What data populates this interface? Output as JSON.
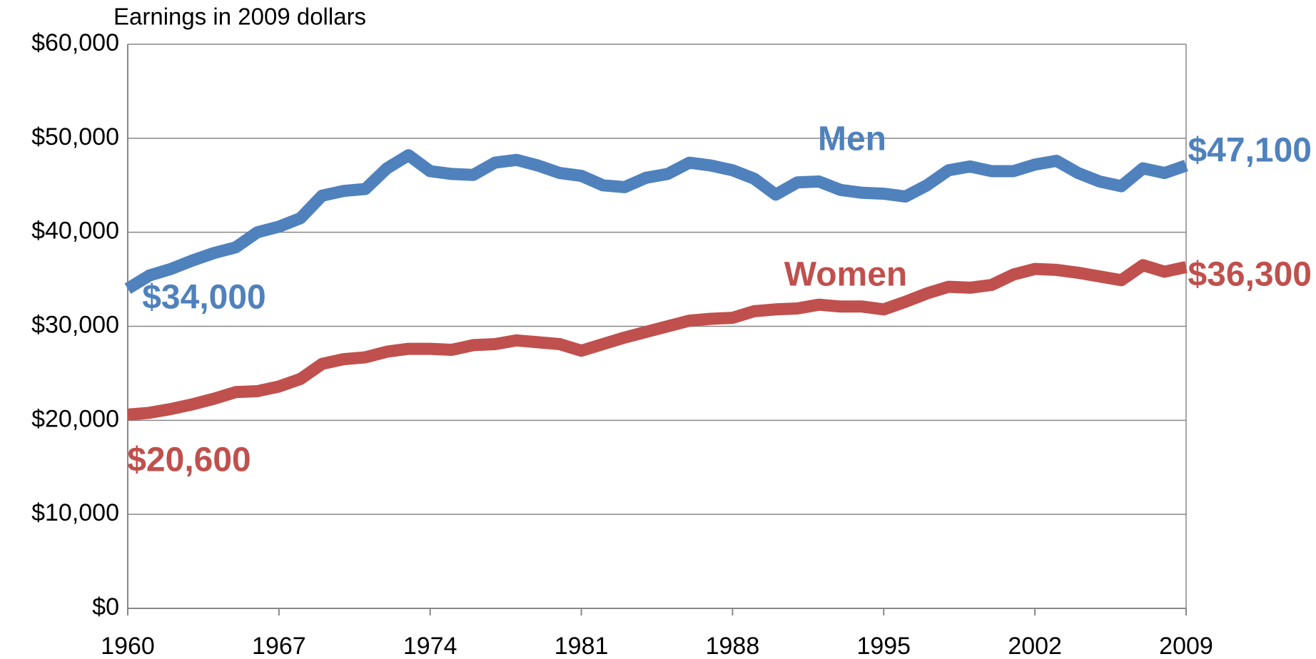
{
  "chart_data": {
    "type": "line",
    "y_axis_label": "Earnings in 2009 dollars",
    "x": [
      1960,
      1961,
      1962,
      1963,
      1964,
      1965,
      1966,
      1967,
      1968,
      1969,
      1970,
      1971,
      1972,
      1973,
      1974,
      1975,
      1976,
      1977,
      1978,
      1979,
      1980,
      1981,
      1982,
      1983,
      1984,
      1985,
      1986,
      1987,
      1988,
      1989,
      1990,
      1991,
      1992,
      1993,
      1994,
      1995,
      1996,
      1997,
      1998,
      1999,
      2000,
      2001,
      2002,
      2003,
      2004,
      2005,
      2006,
      2007,
      2008,
      2009
    ],
    "series": [
      {
        "name": "Men",
        "color": "#4f81bd",
        "values": [
          34000,
          35400,
          36100,
          37000,
          37800,
          38400,
          40000,
          40600,
          41500,
          43900,
          44400,
          44600,
          46800,
          48200,
          46500,
          46200,
          46100,
          47400,
          47700,
          47100,
          46300,
          46000,
          45000,
          44800,
          45800,
          46200,
          47400,
          47100,
          46600,
          45700,
          44000,
          45300,
          45400,
          44500,
          44200,
          44100,
          43800,
          45000,
          46600,
          47000,
          46500,
          46500,
          47200,
          47600,
          46300,
          45400,
          44900,
          46800,
          46300,
          47100
        ],
        "value_labels": [
          "$34,000",
          null,
          null,
          null,
          null,
          null,
          null,
          null,
          null,
          null,
          null,
          null,
          null,
          null,
          null,
          null,
          null,
          null,
          null,
          null,
          null,
          null,
          null,
          null,
          null,
          null,
          null,
          null,
          null,
          null,
          null,
          null,
          null,
          null,
          null,
          null,
          null,
          null,
          null,
          null,
          null,
          null,
          null,
          null,
          null,
          null,
          null,
          null,
          null,
          "$47,100"
        ]
      },
      {
        "name": "Women",
        "color": "#c0504d",
        "values": [
          20600,
          20800,
          21200,
          21700,
          22300,
          23000,
          23100,
          23600,
          24400,
          26000,
          26500,
          26700,
          27300,
          27600,
          27600,
          27500,
          28000,
          28100,
          28500,
          28300,
          28100,
          27400,
          28100,
          28800,
          29400,
          30000,
          30600,
          30800,
          30900,
          31600,
          31800,
          31900,
          32300,
          32100,
          32100,
          31800,
          32600,
          33500,
          34200,
          34100,
          34400,
          35500,
          36100,
          36000,
          35700,
          35300,
          34900,
          36500,
          35800,
          36300
        ],
        "value_labels": [
          "$20,600",
          null,
          null,
          null,
          null,
          null,
          null,
          null,
          null,
          null,
          null,
          null,
          null,
          null,
          null,
          null,
          null,
          null,
          null,
          null,
          null,
          null,
          null,
          null,
          null,
          null,
          null,
          null,
          null,
          null,
          null,
          null,
          null,
          null,
          null,
          null,
          null,
          null,
          null,
          null,
          null,
          null,
          null,
          null,
          null,
          null,
          null,
          null,
          null,
          "$36,300"
        ]
      }
    ],
    "xlim": [
      1960,
      2009
    ],
    "xticks": [
      1960,
      1967,
      1974,
      1981,
      1988,
      1995,
      2002,
      2009
    ],
    "ylim": [
      0,
      60000
    ],
    "yticks": [
      {
        "value": 0,
        "label": "$0"
      },
      {
        "value": 10000,
        "label": "$10,000"
      },
      {
        "value": 20000,
        "label": "$20,000"
      },
      {
        "value": 30000,
        "label": "$30,000"
      },
      {
        "value": 40000,
        "label": "$40,000"
      },
      {
        "value": 50000,
        "label": "$50,000"
      },
      {
        "value": 60000,
        "label": "$60,000"
      }
    ],
    "grid": true
  }
}
